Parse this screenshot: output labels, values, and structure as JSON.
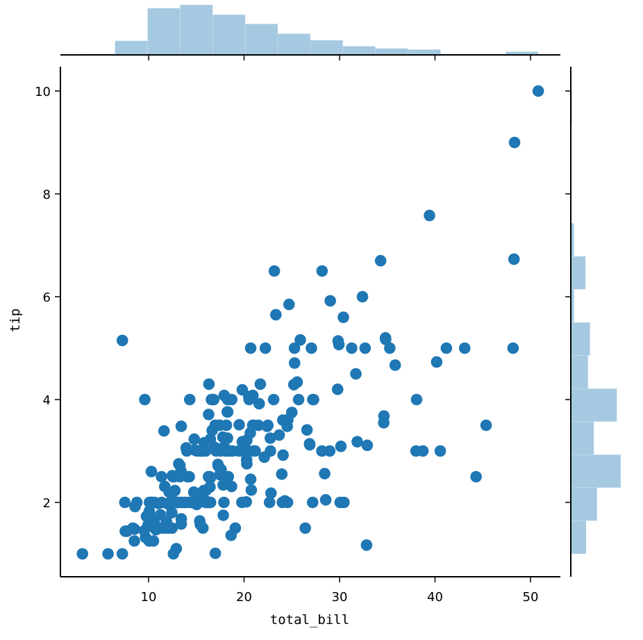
{
  "chart_data": {
    "type": "scatter",
    "title": "",
    "xlabel": "total_bill",
    "ylabel": "tip",
    "xlim": [
      1.0,
      53.0
    ],
    "ylim": [
      0.55,
      10.45
    ],
    "xticks": [
      10,
      20,
      30,
      40,
      50
    ],
    "yticks": [
      2,
      4,
      6,
      8,
      10
    ],
    "grid": false,
    "legend": null,
    "colors": {
      "scatter": "#1f77b4",
      "histogram": "#1f77b4",
      "histogram_alpha": 0.4,
      "axis": "#000000"
    },
    "marginal_x_hist": {
      "bin_edges": [
        3.07,
        6.48,
        9.89,
        13.3,
        16.71,
        20.12,
        23.53,
        26.94,
        30.35,
        33.76,
        37.17,
        40.58,
        43.99,
        47.4,
        50.81
      ],
      "counts": [
        2,
        26,
        86,
        92,
        74,
        57,
        39,
        27,
        16,
        12,
        10,
        2,
        2,
        6
      ]
    },
    "marginal_y_hist": {
      "bin_edges": [
        1.0,
        1.643,
        2.286,
        2.929,
        3.571,
        4.214,
        4.857,
        5.5,
        6.143,
        6.786,
        7.429,
        8.071,
        8.714,
        9.357,
        10.0
      ],
      "counts": [
        24,
        41,
        78,
        36,
        72,
        27,
        30,
        5,
        23,
        5,
        0,
        1,
        0,
        2
      ]
    },
    "points": [
      [
        16.99,
        1.01
      ],
      [
        10.34,
        1.66
      ],
      [
        21.01,
        3.5
      ],
      [
        23.68,
        3.31
      ],
      [
        24.59,
        3.61
      ],
      [
        25.29,
        4.71
      ],
      [
        8.77,
        2.0
      ],
      [
        26.88,
        3.12
      ],
      [
        15.04,
        1.96
      ],
      [
        14.78,
        3.23
      ],
      [
        10.27,
        1.71
      ],
      [
        35.26,
        5.0
      ],
      [
        15.42,
        1.57
      ],
      [
        18.43,
        3.0
      ],
      [
        14.83,
        3.02
      ],
      [
        21.58,
        3.92
      ],
      [
        10.33,
        1.67
      ],
      [
        16.29,
        3.71
      ],
      [
        16.97,
        3.5
      ],
      [
        20.65,
        3.35
      ],
      [
        17.92,
        4.08
      ],
      [
        20.29,
        2.75
      ],
      [
        15.77,
        2.23
      ],
      [
        39.42,
        7.58
      ],
      [
        19.82,
        3.18
      ],
      [
        17.81,
        2.34
      ],
      [
        13.37,
        2.0
      ],
      [
        12.69,
        2.0
      ],
      [
        21.7,
        4.3
      ],
      [
        19.65,
        3.0
      ],
      [
        9.55,
        1.45
      ],
      [
        18.35,
        2.5
      ],
      [
        15.06,
        3.0
      ],
      [
        20.69,
        2.45
      ],
      [
        17.78,
        3.27
      ],
      [
        24.06,
        3.6
      ],
      [
        16.31,
        2.0
      ],
      [
        16.93,
        3.07
      ],
      [
        18.69,
        2.31
      ],
      [
        31.27,
        5.0
      ],
      [
        16.04,
        2.24
      ],
      [
        17.46,
        2.54
      ],
      [
        13.94,
        3.06
      ],
      [
        9.68,
        1.32
      ],
      [
        30.4,
        5.6
      ],
      [
        18.29,
        3.0
      ],
      [
        22.23,
        5.0
      ],
      [
        32.4,
        6.0
      ],
      [
        28.55,
        2.05
      ],
      [
        18.04,
        3.0
      ],
      [
        12.54,
        2.5
      ],
      [
        10.29,
        2.6
      ],
      [
        34.81,
        5.2
      ],
      [
        9.94,
        1.56
      ],
      [
        25.56,
        4.34
      ],
      [
        19.49,
        3.51
      ],
      [
        38.01,
        3.0
      ],
      [
        26.41,
        1.5
      ],
      [
        11.24,
        1.76
      ],
      [
        48.27,
        6.73
      ],
      [
        20.29,
        3.21
      ],
      [
        13.81,
        2.0
      ],
      [
        11.02,
        1.98
      ],
      [
        18.29,
        3.76
      ],
      [
        17.59,
        2.64
      ],
      [
        20.08,
        3.15
      ],
      [
        16.45,
        2.47
      ],
      [
        3.07,
        1.0
      ],
      [
        20.23,
        2.01
      ],
      [
        15.01,
        2.09
      ],
      [
        12.02,
        1.97
      ],
      [
        17.07,
        3.0
      ],
      [
        26.86,
        3.14
      ],
      [
        25.28,
        5.0
      ],
      [
        14.73,
        2.2
      ],
      [
        10.51,
        1.25
      ],
      [
        17.92,
        3.08
      ],
      [
        27.2,
        4.0
      ],
      [
        22.76,
        3.0
      ],
      [
        17.29,
        2.71
      ],
      [
        19.44,
        3.0
      ],
      [
        16.66,
        3.4
      ],
      [
        10.07,
        1.83
      ],
      [
        32.68,
        5.0
      ],
      [
        15.98,
        2.03
      ],
      [
        34.83,
        5.17
      ],
      [
        13.03,
        2.0
      ],
      [
        18.28,
        4.0
      ],
      [
        24.71,
        5.85
      ],
      [
        21.16,
        3.0
      ],
      [
        28.97,
        3.0
      ],
      [
        22.49,
        3.5
      ],
      [
        5.75,
        1.0
      ],
      [
        16.32,
        4.3
      ],
      [
        22.75,
        3.25
      ],
      [
        40.17,
        4.73
      ],
      [
        27.28,
        4.0
      ],
      [
        12.03,
        1.5
      ],
      [
        21.01,
        3.0
      ],
      [
        12.46,
        1.5
      ],
      [
        11.35,
        2.5
      ],
      [
        15.38,
        3.0
      ],
      [
        44.3,
        2.5
      ],
      [
        22.42,
        3.48
      ],
      [
        20.92,
        4.08
      ],
      [
        15.36,
        1.64
      ],
      [
        20.49,
        4.06
      ],
      [
        25.21,
        4.29
      ],
      [
        18.24,
        3.76
      ],
      [
        14.31,
        4.0
      ],
      [
        14.0,
        3.0
      ],
      [
        7.25,
        1.0
      ],
      [
        38.07,
        4.0
      ],
      [
        23.95,
        2.55
      ],
      [
        25.71,
        4.0
      ],
      [
        17.31,
        3.5
      ],
      [
        29.93,
        5.07
      ],
      [
        10.65,
        1.5
      ],
      [
        12.43,
        1.8
      ],
      [
        24.08,
        2.92
      ],
      [
        11.69,
        2.31
      ],
      [
        13.42,
        1.68
      ],
      [
        14.26,
        2.5
      ],
      [
        15.95,
        2.0
      ],
      [
        12.48,
        2.52
      ],
      [
        29.8,
        4.2
      ],
      [
        8.52,
        1.48
      ],
      [
        14.52,
        2.0
      ],
      [
        11.38,
        2.0
      ],
      [
        22.82,
        2.18
      ],
      [
        19.08,
        1.5
      ],
      [
        20.27,
        2.83
      ],
      [
        11.17,
        1.5
      ],
      [
        12.26,
        2.0
      ],
      [
        18.26,
        3.25
      ],
      [
        8.51,
        1.25
      ],
      [
        10.33,
        2.0
      ],
      [
        14.15,
        2.0
      ],
      [
        16.0,
        2.0
      ],
      [
        13.16,
        2.75
      ],
      [
        17.47,
        3.5
      ],
      [
        34.3,
        6.7
      ],
      [
        41.19,
        5.0
      ],
      [
        27.05,
        5.0
      ],
      [
        16.43,
        2.3
      ],
      [
        8.35,
        1.5
      ],
      [
        18.64,
        1.36
      ],
      [
        11.87,
        1.63
      ],
      [
        9.78,
        1.73
      ],
      [
        7.51,
        2.0
      ],
      [
        14.07,
        2.5
      ],
      [
        13.13,
        2.0
      ],
      [
        17.26,
        2.74
      ],
      [
        24.55,
        2.0
      ],
      [
        19.77,
        2.0
      ],
      [
        29.85,
        5.14
      ],
      [
        48.17,
        5.0
      ],
      [
        25.0,
        3.75
      ],
      [
        13.39,
        2.61
      ],
      [
        16.49,
        2.0
      ],
      [
        21.5,
        3.5
      ],
      [
        12.66,
        2.5
      ],
      [
        16.21,
        2.0
      ],
      [
        13.81,
        2.0
      ],
      [
        17.51,
        3.0
      ],
      [
        24.52,
        3.48
      ],
      [
        20.76,
        2.24
      ],
      [
        31.71,
        4.5
      ],
      [
        10.59,
        1.61
      ],
      [
        10.63,
        2.0
      ],
      [
        50.81,
        10.0
      ],
      [
        15.81,
        3.16
      ],
      [
        7.25,
        5.15
      ],
      [
        31.85,
        3.18
      ],
      [
        16.82,
        4.0
      ],
      [
        32.9,
        3.11
      ],
      [
        17.89,
        2.0
      ],
      [
        14.48,
        2.0
      ],
      [
        9.6,
        4.0
      ],
      [
        34.63,
        3.55
      ],
      [
        34.65,
        3.68
      ],
      [
        23.33,
        5.65
      ],
      [
        45.35,
        3.5
      ],
      [
        23.17,
        6.5
      ],
      [
        40.55,
        3.0
      ],
      [
        20.69,
        5.0
      ],
      [
        20.9,
        3.5
      ],
      [
        30.46,
        2.0
      ],
      [
        18.15,
        3.5
      ],
      [
        23.1,
        4.0
      ],
      [
        15.69,
        1.5
      ],
      [
        19.81,
        4.19
      ],
      [
        28.44,
        2.56
      ],
      [
        15.48,
        2.02
      ],
      [
        16.58,
        4.0
      ],
      [
        7.56,
        1.44
      ],
      [
        10.34,
        2.0
      ],
      [
        43.11,
        5.0
      ],
      [
        13.0,
        2.0
      ],
      [
        13.51,
        2.0
      ],
      [
        18.71,
        4.0
      ],
      [
        12.74,
        2.01
      ],
      [
        13.0,
        2.0
      ],
      [
        16.4,
        2.5
      ],
      [
        20.53,
        4.0
      ],
      [
        16.47,
        3.23
      ],
      [
        26.59,
        3.41
      ],
      [
        38.73,
        3.0
      ],
      [
        24.27,
        2.03
      ],
      [
        12.76,
        2.23
      ],
      [
        30.06,
        2.0
      ],
      [
        25.89,
        5.16
      ],
      [
        48.33,
        9.0
      ],
      [
        13.27,
        2.5
      ],
      [
        28.17,
        6.5
      ],
      [
        12.9,
        1.1
      ],
      [
        28.15,
        3.0
      ],
      [
        11.59,
        1.5
      ],
      [
        7.74,
        1.44
      ],
      [
        30.14,
        3.09
      ],
      [
        12.16,
        2.2
      ],
      [
        13.42,
        3.48
      ],
      [
        8.58,
        1.92
      ],
      [
        15.98,
        3.0
      ],
      [
        13.42,
        1.58
      ],
      [
        16.27,
        2.5
      ],
      [
        10.09,
        2.0
      ],
      [
        20.45,
        3.0
      ],
      [
        13.28,
        2.72
      ],
      [
        22.12,
        2.88
      ],
      [
        24.01,
        2.0
      ],
      [
        15.69,
        3.0
      ],
      [
        11.61,
        3.39
      ],
      [
        10.77,
        1.47
      ],
      [
        15.53,
        3.0
      ],
      [
        10.07,
        1.25
      ],
      [
        12.6,
        1.0
      ],
      [
        32.83,
        1.17
      ],
      [
        35.83,
        4.67
      ],
      [
        29.03,
        5.92
      ],
      [
        27.18,
        2.0
      ],
      [
        22.67,
        2.0
      ],
      [
        17.82,
        1.75
      ],
      [
        18.78,
        3.0
      ]
    ]
  }
}
